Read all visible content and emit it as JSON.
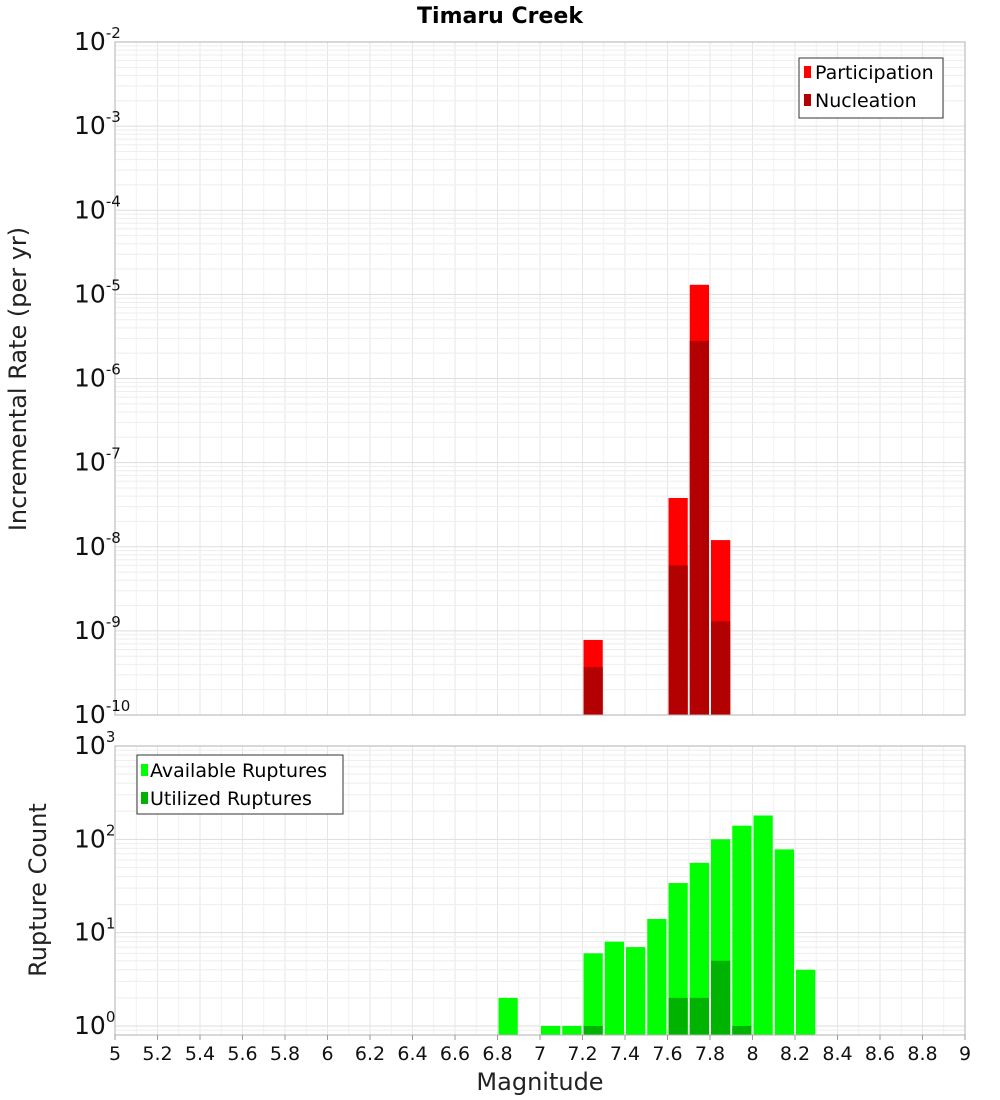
{
  "title": "Timaru Creek",
  "chart_data": [
    {
      "type": "bar",
      "ylabel": "Incremental Rate (per yr)",
      "yscale": "log",
      "ylim": [
        1e-10,
        0.01
      ],
      "xlim": [
        5,
        9
      ],
      "yticks": [
        {
          "base": "10",
          "exp": "-10"
        },
        {
          "base": "10",
          "exp": "-9"
        },
        {
          "base": "10",
          "exp": "-8"
        },
        {
          "base": "10",
          "exp": "-7"
        },
        {
          "base": "10",
          "exp": "-6"
        },
        {
          "base": "10",
          "exp": "-5"
        },
        {
          "base": "10",
          "exp": "-4"
        },
        {
          "base": "10",
          "exp": "-3"
        },
        {
          "base": "10",
          "exp": "-2"
        }
      ],
      "grid": true,
      "legend": "top-right",
      "series": [
        {
          "name": "Participation",
          "color": "#ff0000",
          "x": [
            7.25,
            7.65,
            7.75,
            7.85
          ],
          "values": [
            7.8e-10,
            3.8e-08,
            1.3e-05,
            1.2e-08
          ]
        },
        {
          "name": "Nucleation",
          "color": "#b30000",
          "x": [
            7.25,
            7.65,
            7.75,
            7.85
          ],
          "values": [
            3.7e-10,
            6e-09,
            2.8e-06,
            1.3e-09
          ]
        }
      ]
    },
    {
      "type": "bar",
      "xlabel": "Magnitude",
      "ylabel": "Rupture Count",
      "yscale": "log",
      "ylim": [
        0.8,
        1000
      ],
      "xlim": [
        5,
        9
      ],
      "xticks": [
        "5",
        "5.2",
        "5.4",
        "5.6",
        "5.8",
        "6",
        "6.2",
        "6.4",
        "6.6",
        "6.8",
        "7",
        "7.2",
        "7.4",
        "7.6",
        "7.8",
        "8",
        "8.2",
        "8.4",
        "8.6",
        "8.8",
        "9"
      ],
      "yticks": [
        {
          "base": "10",
          "exp": "0"
        },
        {
          "base": "10",
          "exp": "1"
        },
        {
          "base": "10",
          "exp": "2"
        },
        {
          "base": "10",
          "exp": "3"
        }
      ],
      "grid": true,
      "legend": "top-left",
      "series": [
        {
          "name": "Available Ruptures",
          "color": "#00ff00",
          "x": [
            6.85,
            7.05,
            7.15,
            7.25,
            7.35,
            7.45,
            7.55,
            7.65,
            7.75,
            7.85,
            7.95,
            8.05,
            8.15,
            8.25
          ],
          "values": [
            2,
            1,
            1,
            6,
            8,
            7,
            14,
            34,
            56,
            100,
            140,
            180,
            78,
            4
          ]
        },
        {
          "name": "Utilized Ruptures",
          "color": "#00b300",
          "x": [
            7.25,
            7.65,
            7.75,
            7.85,
            7.95
          ],
          "values": [
            1,
            2,
            2,
            5,
            1
          ]
        }
      ]
    }
  ]
}
